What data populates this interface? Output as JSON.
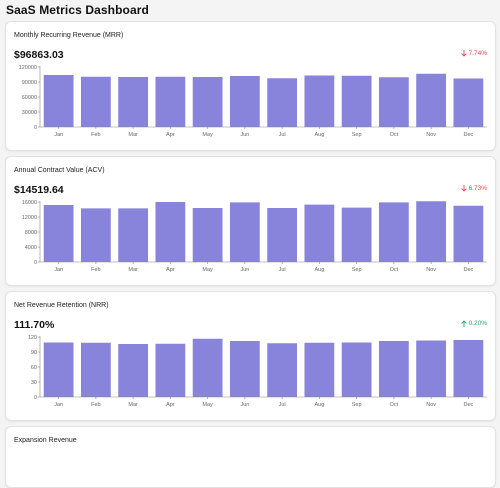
{
  "page": {
    "title": "SaaS Metrics Dashboard"
  },
  "colors": {
    "bar": "#8984db",
    "negative": "#e5484d",
    "positive": "#30a46c",
    "axis": "#888888"
  },
  "cards": [
    {
      "title": "Monthly Recurring Revenue (MRR)",
      "value": "$96863.03",
      "change": "7.74%",
      "direction": "down",
      "icon": "arrow-down-icon"
    },
    {
      "title": "Annual Contract Value (ACV)",
      "value": "$14519.64",
      "change": "6.73%",
      "direction": "down",
      "icon": "arrow-down-icon"
    },
    {
      "title": "Net Revenue Retention (NRR)",
      "value": "111.70%",
      "change": "0.20%",
      "direction": "up",
      "icon": "arrow-up-icon"
    },
    {
      "title": "Expansion Revenue"
    }
  ],
  "chart_data": [
    {
      "type": "bar",
      "categories": [
        "Jan",
        "Feb",
        "Mar",
        "Apr",
        "May",
        "Jun",
        "Jul",
        "Aug",
        "Sep",
        "Oct",
        "Nov",
        "Dec"
      ],
      "values": [
        104000,
        100500,
        100000,
        100500,
        100000,
        102000,
        97500,
        103000,
        102500,
        99500,
        106500,
        97000
      ],
      "yticks": [
        "0",
        "30000",
        "60000",
        "90000",
        "120000"
      ],
      "ylim": [
        0,
        120000
      ]
    },
    {
      "type": "bar",
      "categories": [
        "Jan",
        "Feb",
        "Mar",
        "Apr",
        "May",
        "Jun",
        "Jul",
        "Aug",
        "Sep",
        "Oct",
        "Nov",
        "Dec"
      ],
      "values": [
        15200,
        14300,
        14300,
        16000,
        14400,
        15900,
        14400,
        15300,
        14500,
        15900,
        16200,
        15000
      ],
      "yticks": [
        "0",
        "4000",
        "8000",
        "12000",
        "16000"
      ],
      "ylim": [
        0,
        16000
      ]
    },
    {
      "type": "bar",
      "categories": [
        "Jan",
        "Feb",
        "Mar",
        "Apr",
        "May",
        "Jun",
        "Jul",
        "Aug",
        "Sep",
        "Oct",
        "Nov",
        "Dec"
      ],
      "values": [
        109,
        108.5,
        106,
        106.5,
        116.5,
        112,
        107.5,
        108.5,
        109,
        112,
        113,
        114
      ],
      "yticks": [
        "0",
        "30",
        "60",
        "90",
        "120"
      ],
      "ylim": [
        0,
        120
      ]
    }
  ]
}
